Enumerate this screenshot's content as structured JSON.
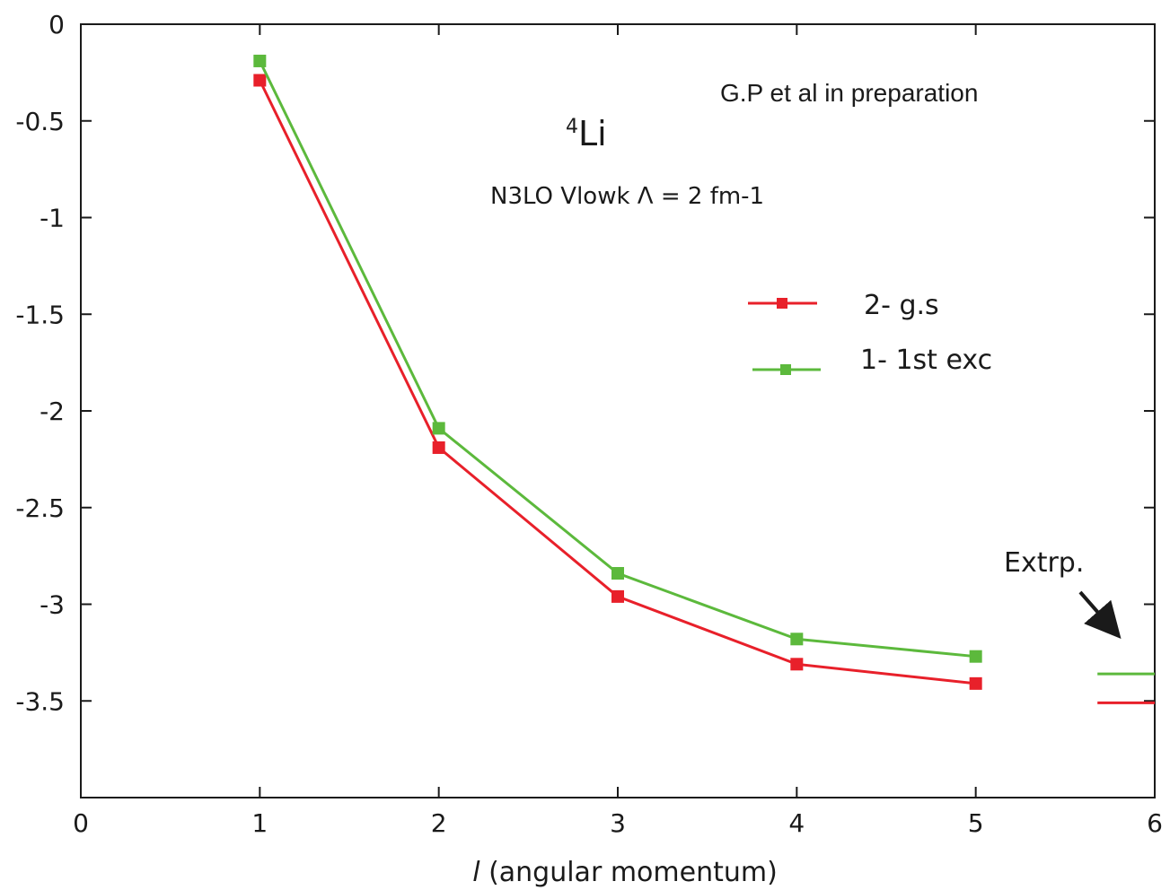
{
  "chart_data": {
    "type": "line",
    "x": [
      1,
      2,
      3,
      4,
      5
    ],
    "series": [
      {
        "name": "2- g.s",
        "color": "#e8202a",
        "values": [
          -0.29,
          -2.19,
          -2.96,
          -3.31,
          -3.41
        ]
      },
      {
        "name": "1- 1st exc",
        "color": "#5cb93c",
        "values": [
          -0.19,
          -2.09,
          -2.84,
          -3.18,
          -3.27
        ]
      }
    ],
    "extrapolation": {
      "label": "Extrp.",
      "values": {
        "2- g.s": -3.51,
        "1- 1st exc": -3.36
      }
    },
    "xlabel_italic": "l",
    "xlabel_rest": " (angular momentum)",
    "xlim": [
      0,
      6
    ],
    "ylim": [
      -4,
      0
    ],
    "xticks": [
      "0",
      "1",
      "2",
      "3",
      "4",
      "5",
      "6"
    ],
    "yticks": [
      {
        "value": 0,
        "label": "0"
      },
      {
        "value": -0.5,
        "label": "-0.5"
      },
      {
        "value": -1,
        "label": "-1"
      },
      {
        "value": -1.5,
        "label": "-1.5"
      },
      {
        "value": -2,
        "label": "-2"
      },
      {
        "value": -2.5,
        "label": "-2.5"
      },
      {
        "value": -3,
        "label": "-3"
      },
      {
        "value": -3.5,
        "label": "-3.5"
      }
    ],
    "annotations": {
      "credit": "G.P et  al in preparation",
      "nucleus_mass": "4",
      "nucleus_symbol": "Li",
      "interaction": "N3LO  Vlowk Λ = 2 fm-1"
    },
    "legend_position": "upper-right",
    "grid": false
  }
}
